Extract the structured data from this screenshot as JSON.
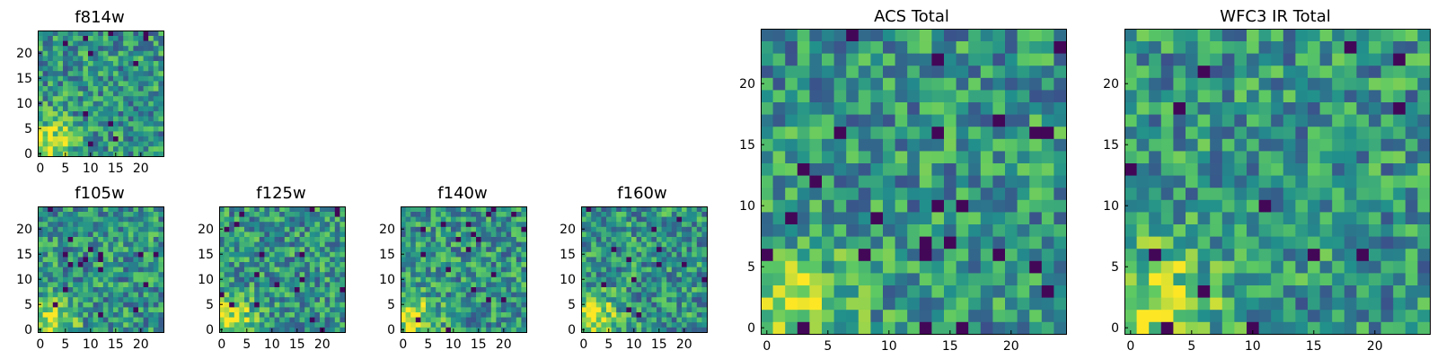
{
  "chart_data": [
    {
      "type": "heatmap",
      "title": "f814w",
      "size": 25,
      "seed": 11,
      "xticks": [
        0,
        5,
        10,
        15,
        20
      ],
      "yticks": [
        0,
        5,
        10,
        15,
        20
      ],
      "colormap": "viridis",
      "bright_region": "bottom-left"
    },
    {
      "type": "heatmap",
      "title": "f105w",
      "size": 25,
      "seed": 23,
      "xticks": [
        0,
        5,
        10,
        15,
        20
      ],
      "yticks": [
        0,
        5,
        10,
        15,
        20
      ],
      "colormap": "viridis",
      "bright_region": "bottom-left"
    },
    {
      "type": "heatmap",
      "title": "f125w",
      "size": 25,
      "seed": 37,
      "xticks": [
        0,
        5,
        10,
        15,
        20
      ],
      "yticks": [
        0,
        5,
        10,
        15,
        20
      ],
      "colormap": "viridis",
      "bright_region": "bottom-left"
    },
    {
      "type": "heatmap",
      "title": "f140w",
      "size": 25,
      "seed": 41,
      "xticks": [
        0,
        5,
        10,
        15,
        20
      ],
      "yticks": [
        0,
        5,
        10,
        15,
        20
      ],
      "colormap": "viridis",
      "bright_region": "bottom-left"
    },
    {
      "type": "heatmap",
      "title": "f160w",
      "size": 25,
      "seed": 53,
      "xticks": [
        0,
        5,
        10,
        15,
        20
      ],
      "yticks": [
        0,
        5,
        10,
        15,
        20
      ],
      "colormap": "viridis",
      "bright_region": "bottom-left"
    },
    {
      "type": "heatmap",
      "title": "ACS Total",
      "size": 25,
      "seed": 67,
      "xticks": [
        0,
        5,
        10,
        15,
        20
      ],
      "yticks": [
        0,
        5,
        10,
        15,
        20
      ],
      "colormap": "viridis",
      "bright_region": "bottom-left"
    },
    {
      "type": "heatmap",
      "title": "WFC3 IR Total",
      "size": 25,
      "seed": 79,
      "xticks": [
        0,
        5,
        10,
        15,
        20
      ],
      "yticks": [
        0,
        5,
        10,
        15,
        20
      ],
      "colormap": "viridis",
      "bright_region": "bottom-left"
    }
  ],
  "colors": {
    "viridis_stops": [
      "#440154",
      "#3b528b",
      "#21908c",
      "#5dc963",
      "#fde725"
    ]
  }
}
